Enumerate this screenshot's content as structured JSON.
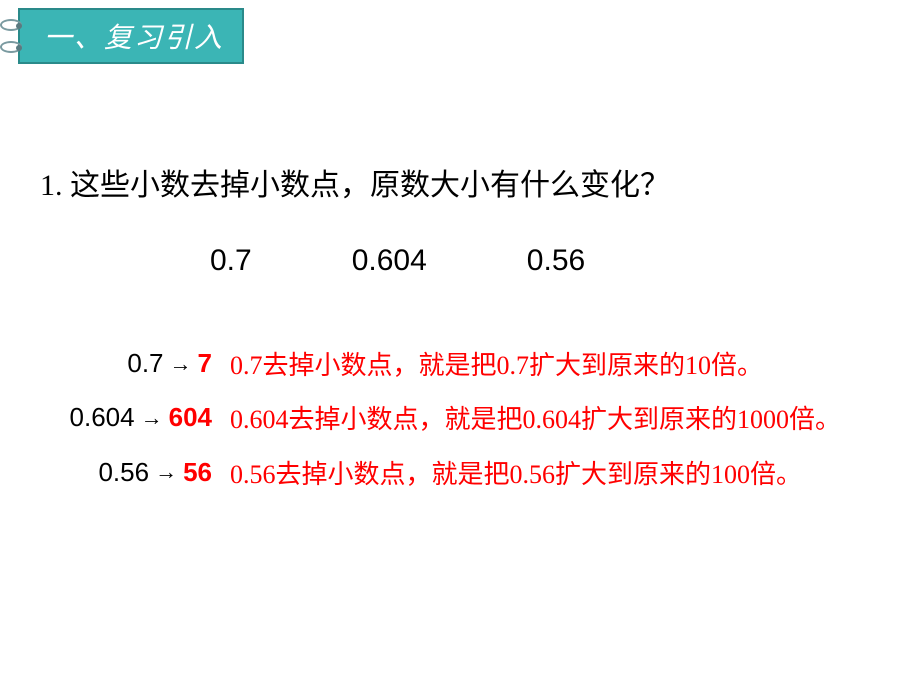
{
  "header": {
    "title": "一、复习引入"
  },
  "question": {
    "text": "1. 这些小数去掉小数点，原数大小有什么变化？"
  },
  "numbers": {
    "n1": "0.7",
    "n2": "0.604",
    "n3": "0.56"
  },
  "answers": [
    {
      "from": "0.7",
      "to": "7",
      "explanation": "0.7去掉小数点，就是把0.7扩大到原来的10倍。"
    },
    {
      "from": "0.604",
      "to": "604",
      "explanation": "0.604去掉小数点，就是把0.604扩大到原来的1000倍。"
    },
    {
      "from": "0.56",
      "to": "56",
      "explanation": "0.56去掉小数点，就是把0.56扩大到原来的100倍。"
    }
  ],
  "colors": {
    "red": "#ff0000",
    "black": "#000000",
    "banner_bg": "#3bb5b5",
    "banner_border": "#2a8a8a",
    "white": "#ffffff"
  }
}
